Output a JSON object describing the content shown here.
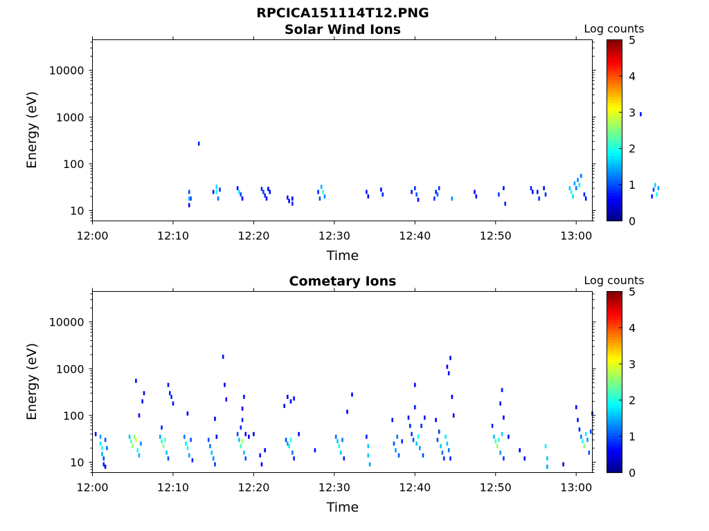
{
  "figure_title": "RPCICA151114T12.PNG",
  "colors": {
    "colormap": "jet",
    "background": "#ffffff"
  },
  "chart_data": [
    {
      "type": "heatmap",
      "title": "Solar Wind Ions",
      "xlabel": "Time",
      "ylabel": "Energy (eV)",
      "yscale": "log",
      "xlim": [
        "12:00",
        "13:02"
      ],
      "ylim": [
        6,
        45000
      ],
      "x_ticks": [
        "12:00",
        "12:10",
        "12:20",
        "12:30",
        "12:40",
        "12:50",
        "13:00"
      ],
      "y_ticks": [
        "10",
        "100",
        "1000",
        "10000"
      ],
      "colorbar": {
        "label": "Log counts",
        "range": [
          0,
          5
        ],
        "ticks": [
          "0",
          "1",
          "2",
          "3",
          "4",
          "5"
        ]
      },
      "cells": [
        {
          "t": 12.0,
          "e": 25,
          "v": 1.0
        },
        {
          "t": 12.0,
          "e": 18,
          "v": 1.6
        },
        {
          "t": 12.0,
          "e": 13,
          "v": 0.6
        },
        {
          "t": 12.2,
          "e": 18,
          "v": 1.0
        },
        {
          "t": 13.2,
          "e": 270,
          "v": 0.8
        },
        {
          "t": 15.0,
          "e": 25,
          "v": 0.7
        },
        {
          "t": 15.4,
          "e": 32,
          "v": 1.7
        },
        {
          "t": 15.4,
          "e": 25,
          "v": 1.9
        },
        {
          "t": 15.6,
          "e": 18,
          "v": 1.2
        },
        {
          "t": 15.8,
          "e": 28,
          "v": 0.9
        },
        {
          "t": 18.0,
          "e": 30,
          "v": 0.7
        },
        {
          "t": 18.2,
          "e": 25,
          "v": 1.8
        },
        {
          "t": 18.4,
          "e": 22,
          "v": 1.0
        },
        {
          "t": 18.6,
          "e": 18,
          "v": 0.6
        },
        {
          "t": 21.0,
          "e": 29,
          "v": 0.8
        },
        {
          "t": 21.2,
          "e": 25,
          "v": 0.9
        },
        {
          "t": 21.4,
          "e": 21,
          "v": 0.8
        },
        {
          "t": 21.6,
          "e": 18,
          "v": 0.7
        },
        {
          "t": 21.8,
          "e": 29,
          "v": 0.6
        },
        {
          "t": 22.0,
          "e": 25,
          "v": 0.7
        },
        {
          "t": 24.2,
          "e": 19,
          "v": 0.7
        },
        {
          "t": 24.4,
          "e": 16,
          "v": 0.6
        },
        {
          "t": 24.8,
          "e": 18,
          "v": 0.6
        },
        {
          "t": 24.8,
          "e": 14,
          "v": 0.8
        },
        {
          "t": 28.0,
          "e": 25,
          "v": 0.8
        },
        {
          "t": 28.2,
          "e": 18,
          "v": 1.0
        },
        {
          "t": 28.4,
          "e": 32,
          "v": 1.5
        },
        {
          "t": 28.6,
          "e": 25,
          "v": 2.0
        },
        {
          "t": 28.8,
          "e": 20,
          "v": 1.3
        },
        {
          "t": 34.0,
          "e": 25,
          "v": 0.7
        },
        {
          "t": 34.2,
          "e": 20,
          "v": 0.6
        },
        {
          "t": 35.8,
          "e": 28,
          "v": 0.6
        },
        {
          "t": 36.0,
          "e": 22,
          "v": 0.8
        },
        {
          "t": 39.6,
          "e": 25,
          "v": 0.7
        },
        {
          "t": 40.0,
          "e": 30,
          "v": 0.9
        },
        {
          "t": 40.2,
          "e": 22,
          "v": 1.0
        },
        {
          "t": 40.4,
          "e": 17,
          "v": 0.7
        },
        {
          "t": 42.4,
          "e": 18,
          "v": 0.9
        },
        {
          "t": 42.6,
          "e": 25,
          "v": 0.8
        },
        {
          "t": 42.8,
          "e": 22,
          "v": 1.1
        },
        {
          "t": 43.0,
          "e": 30,
          "v": 0.9
        },
        {
          "t": 44.6,
          "e": 18,
          "v": 1.3
        },
        {
          "t": 47.4,
          "e": 25,
          "v": 0.6
        },
        {
          "t": 47.6,
          "e": 20,
          "v": 0.7
        },
        {
          "t": 50.4,
          "e": 22,
          "v": 0.9
        },
        {
          "t": 51.0,
          "e": 30,
          "v": 0.7
        },
        {
          "t": 51.2,
          "e": 14,
          "v": 0.8
        },
        {
          "t": 54.4,
          "e": 30,
          "v": 0.7
        },
        {
          "t": 54.6,
          "e": 25,
          "v": 0.6
        },
        {
          "t": 55.2,
          "e": 25,
          "v": 0.7
        },
        {
          "t": 55.4,
          "e": 18,
          "v": 0.8
        },
        {
          "t": 56.0,
          "e": 30,
          "v": 0.6
        },
        {
          "t": 56.2,
          "e": 22,
          "v": 0.8
        },
        {
          "t": 59.2,
          "e": 30,
          "v": 1.6
        },
        {
          "t": 59.4,
          "e": 25,
          "v": 2.0
        },
        {
          "t": 59.6,
          "e": 20,
          "v": 1.7
        },
        {
          "t": 59.8,
          "e": 38,
          "v": 1.4
        },
        {
          "t": 60.0,
          "e": 30,
          "v": 1.2
        },
        {
          "t": 60.2,
          "e": 45,
          "v": 1.3
        },
        {
          "t": 60.4,
          "e": 35,
          "v": 1.8
        },
        {
          "t": 60.6,
          "e": 55,
          "v": 1.2
        },
        {
          "t": 61.0,
          "e": 22,
          "v": 0.8
        },
        {
          "t": 61.2,
          "e": 18,
          "v": 0.7
        },
        {
          "t": 64.2,
          "e": 380,
          "v": 0.7
        },
        {
          "t": 68.0,
          "e": 1150,
          "v": 0.7
        },
        {
          "t": 69.4,
          "e": 20,
          "v": 0.8
        },
        {
          "t": 69.6,
          "e": 28,
          "v": 1.0
        },
        {
          "t": 69.8,
          "e": 35,
          "v": 1.7
        },
        {
          "t": 70.0,
          "e": 22,
          "v": 1.9
        },
        {
          "t": 70.2,
          "e": 30,
          "v": 1.4
        }
      ]
    },
    {
      "type": "heatmap",
      "title": "Cometary Ions",
      "xlabel": "Time",
      "ylabel": "Energy (eV)",
      "yscale": "log",
      "xlim": [
        "12:00",
        "13:02"
      ],
      "ylim": [
        6,
        45000
      ],
      "x_ticks": [
        "12:00",
        "12:10",
        "12:20",
        "12:30",
        "12:40",
        "12:50",
        "13:00"
      ],
      "y_ticks": [
        "10",
        "100",
        "1000",
        "10000"
      ],
      "colorbar": {
        "label": "Log counts",
        "range": [
          0,
          5
        ],
        "ticks": [
          "0",
          "1",
          "2",
          "3",
          "4",
          "5"
        ]
      },
      "cells": [
        {
          "t": 0.4,
          "e": 40,
          "v": 0.6
        },
        {
          "t": 1.0,
          "e": 35,
          "v": 1.4
        },
        {
          "t": 1.0,
          "e": 25,
          "v": 1.8
        },
        {
          "t": 1.2,
          "e": 20,
          "v": 2.0
        },
        {
          "t": 1.2,
          "e": 15,
          "v": 1.5
        },
        {
          "t": 1.4,
          "e": 12,
          "v": 1.0
        },
        {
          "t": 1.4,
          "e": 9,
          "v": 0.8
        },
        {
          "t": 1.6,
          "e": 30,
          "v": 1.0
        },
        {
          "t": 1.6,
          "e": 8,
          "v": 0.6
        },
        {
          "t": 1.8,
          "e": 20,
          "v": 1.2
        },
        {
          "t": 4.6,
          "e": 35,
          "v": 1.6
        },
        {
          "t": 4.8,
          "e": 28,
          "v": 2.2
        },
        {
          "t": 5.0,
          "e": 22,
          "v": 2.5
        },
        {
          "t": 5.2,
          "e": 35,
          "v": 2.6
        },
        {
          "t": 5.4,
          "e": 30,
          "v": 2.9
        },
        {
          "t": 5.6,
          "e": 18,
          "v": 2.0
        },
        {
          "t": 5.8,
          "e": 14,
          "v": 1.5
        },
        {
          "t": 6.0,
          "e": 25,
          "v": 1.3
        },
        {
          "t": 5.4,
          "e": 550,
          "v": 0.7
        },
        {
          "t": 5.8,
          "e": 100,
          "v": 0.7
        },
        {
          "t": 6.2,
          "e": 200,
          "v": 0.6
        },
        {
          "t": 6.4,
          "e": 300,
          "v": 0.6
        },
        {
          "t": 8.4,
          "e": 35,
          "v": 1.4
        },
        {
          "t": 8.6,
          "e": 28,
          "v": 2.1
        },
        {
          "t": 8.8,
          "e": 22,
          "v": 2.6
        },
        {
          "t": 9.0,
          "e": 30,
          "v": 2.3
        },
        {
          "t": 9.2,
          "e": 16,
          "v": 1.6
        },
        {
          "t": 9.4,
          "e": 12,
          "v": 1.0
        },
        {
          "t": 8.6,
          "e": 55,
          "v": 0.8
        },
        {
          "t": 9.4,
          "e": 450,
          "v": 0.7
        },
        {
          "t": 9.6,
          "e": 300,
          "v": 0.8
        },
        {
          "t": 9.8,
          "e": 250,
          "v": 0.8
        },
        {
          "t": 10.0,
          "e": 180,
          "v": 0.7
        },
        {
          "t": 11.4,
          "e": 35,
          "v": 1.2
        },
        {
          "t": 11.6,
          "e": 25,
          "v": 1.8
        },
        {
          "t": 11.8,
          "e": 20,
          "v": 2.0
        },
        {
          "t": 12.0,
          "e": 14,
          "v": 1.4
        },
        {
          "t": 12.2,
          "e": 30,
          "v": 1.0
        },
        {
          "t": 12.4,
          "e": 11,
          "v": 0.8
        },
        {
          "t": 11.8,
          "e": 110,
          "v": 0.6
        },
        {
          "t": 14.4,
          "e": 30,
          "v": 1.0
        },
        {
          "t": 14.6,
          "e": 22,
          "v": 1.2
        },
        {
          "t": 14.8,
          "e": 16,
          "v": 1.6
        },
        {
          "t": 15.0,
          "e": 12,
          "v": 1.3
        },
        {
          "t": 15.2,
          "e": 9,
          "v": 0.9
        },
        {
          "t": 15.4,
          "e": 35,
          "v": 0.6
        },
        {
          "t": 15.2,
          "e": 85,
          "v": 0.6
        },
        {
          "t": 16.2,
          "e": 1800,
          "v": 0.7
        },
        {
          "t": 16.4,
          "e": 450,
          "v": 0.6
        },
        {
          "t": 16.6,
          "e": 220,
          "v": 0.6
        },
        {
          "t": 18.0,
          "e": 40,
          "v": 1.0
        },
        {
          "t": 18.2,
          "e": 30,
          "v": 1.6
        },
        {
          "t": 18.4,
          "e": 22,
          "v": 2.2
        },
        {
          "t": 18.6,
          "e": 28,
          "v": 2.7
        },
        {
          "t": 18.8,
          "e": 16,
          "v": 1.6
        },
        {
          "t": 19.0,
          "e": 12,
          "v": 1.0
        },
        {
          "t": 18.4,
          "e": 55,
          "v": 0.8
        },
        {
          "t": 18.6,
          "e": 80,
          "v": 0.8
        },
        {
          "t": 18.6,
          "e": 140,
          "v": 0.6
        },
        {
          "t": 18.8,
          "e": 250,
          "v": 0.7
        },
        {
          "t": 19.0,
          "e": 40,
          "v": 0.6
        },
        {
          "t": 19.4,
          "e": 35,
          "v": 0.6
        },
        {
          "t": 20.0,
          "e": 40,
          "v": 0.6
        },
        {
          "t": 20.8,
          "e": 14,
          "v": 0.7
        },
        {
          "t": 21.0,
          "e": 9,
          "v": 0.6
        },
        {
          "t": 21.4,
          "e": 18,
          "v": 0.6
        },
        {
          "t": 24.0,
          "e": 30,
          "v": 1.0
        },
        {
          "t": 24.2,
          "e": 25,
          "v": 1.4
        },
        {
          "t": 24.4,
          "e": 22,
          "v": 1.8
        },
        {
          "t": 24.6,
          "e": 30,
          "v": 2.0
        },
        {
          "t": 24.8,
          "e": 16,
          "v": 1.2
        },
        {
          "t": 25.0,
          "e": 12,
          "v": 0.8
        },
        {
          "t": 23.8,
          "e": 160,
          "v": 0.6
        },
        {
          "t": 24.2,
          "e": 250,
          "v": 0.6
        },
        {
          "t": 24.6,
          "e": 200,
          "v": 0.6
        },
        {
          "t": 25.0,
          "e": 230,
          "v": 0.6
        },
        {
          "t": 25.6,
          "e": 40,
          "v": 0.6
        },
        {
          "t": 27.6,
          "e": 18,
          "v": 0.7
        },
        {
          "t": 30.2,
          "e": 35,
          "v": 1.2
        },
        {
          "t": 30.4,
          "e": 28,
          "v": 1.6
        },
        {
          "t": 30.6,
          "e": 22,
          "v": 2.0
        },
        {
          "t": 30.8,
          "e": 16,
          "v": 1.6
        },
        {
          "t": 31.0,
          "e": 30,
          "v": 1.2
        },
        {
          "t": 31.2,
          "e": 12,
          "v": 0.8
        },
        {
          "t": 31.6,
          "e": 120,
          "v": 0.6
        },
        {
          "t": 32.2,
          "e": 280,
          "v": 0.6
        },
        {
          "t": 34.0,
          "e": 35,
          "v": 0.8
        },
        {
          "t": 34.2,
          "e": 22,
          "v": 1.6
        },
        {
          "t": 34.2,
          "e": 14,
          "v": 1.6
        },
        {
          "t": 34.4,
          "e": 9,
          "v": 1.4
        },
        {
          "t": 37.2,
          "e": 80,
          "v": 0.6
        },
        {
          "t": 37.4,
          "e": 25,
          "v": 1.0
        },
        {
          "t": 37.6,
          "e": 18,
          "v": 1.4
        },
        {
          "t": 37.8,
          "e": 35,
          "v": 1.2
        },
        {
          "t": 38.0,
          "e": 14,
          "v": 1.0
        },
        {
          "t": 38.4,
          "e": 28,
          "v": 0.8
        },
        {
          "t": 39.2,
          "e": 90,
          "v": 0.7
        },
        {
          "t": 39.4,
          "e": 60,
          "v": 0.8
        },
        {
          "t": 39.6,
          "e": 40,
          "v": 0.9
        },
        {
          "t": 39.8,
          "e": 30,
          "v": 1.0
        },
        {
          "t": 40.0,
          "e": 150,
          "v": 0.7
        },
        {
          "t": 40.0,
          "e": 450,
          "v": 0.6
        },
        {
          "t": 40.2,
          "e": 25,
          "v": 1.6
        },
        {
          "t": 40.4,
          "e": 35,
          "v": 1.9
        },
        {
          "t": 40.6,
          "e": 20,
          "v": 1.4
        },
        {
          "t": 40.8,
          "e": 60,
          "v": 0.8
        },
        {
          "t": 41.0,
          "e": 14,
          "v": 1.0
        },
        {
          "t": 41.2,
          "e": 90,
          "v": 0.6
        },
        {
          "t": 42.6,
          "e": 80,
          "v": 0.6
        },
        {
          "t": 42.8,
          "e": 30,
          "v": 1.0
        },
        {
          "t": 43.0,
          "e": 45,
          "v": 0.9
        },
        {
          "t": 43.2,
          "e": 22,
          "v": 1.6
        },
        {
          "t": 43.4,
          "e": 16,
          "v": 1.2
        },
        {
          "t": 43.6,
          "e": 12,
          "v": 0.9
        },
        {
          "t": 43.8,
          "e": 35,
          "v": 1.8
        },
        {
          "t": 44.0,
          "e": 25,
          "v": 1.6
        },
        {
          "t": 44.2,
          "e": 18,
          "v": 1.2
        },
        {
          "t": 44.4,
          "e": 12,
          "v": 0.8
        },
        {
          "t": 44.0,
          "e": 1100,
          "v": 0.6
        },
        {
          "t": 44.2,
          "e": 800,
          "v": 0.7
        },
        {
          "t": 44.4,
          "e": 1700,
          "v": 0.6
        },
        {
          "t": 44.6,
          "e": 250,
          "v": 0.6
        },
        {
          "t": 44.8,
          "e": 100,
          "v": 0.6
        },
        {
          "t": 49.6,
          "e": 60,
          "v": 0.8
        },
        {
          "t": 49.8,
          "e": 35,
          "v": 1.6
        },
        {
          "t": 50.0,
          "e": 28,
          "v": 2.3
        },
        {
          "t": 50.2,
          "e": 22,
          "v": 2.6
        },
        {
          "t": 50.4,
          "e": 30,
          "v": 2.1
        },
        {
          "t": 50.6,
          "e": 16,
          "v": 1.4
        },
        {
          "t": 50.8,
          "e": 40,
          "v": 1.7
        },
        {
          "t": 51.0,
          "e": 12,
          "v": 0.9
        },
        {
          "t": 50.6,
          "e": 180,
          "v": 0.7
        },
        {
          "t": 50.8,
          "e": 350,
          "v": 0.7
        },
        {
          "t": 51.0,
          "e": 90,
          "v": 0.6
        },
        {
          "t": 51.6,
          "e": 35,
          "v": 0.6
        },
        {
          "t": 53.0,
          "e": 18,
          "v": 0.6
        },
        {
          "t": 53.6,
          "e": 12,
          "v": 0.6
        },
        {
          "t": 56.2,
          "e": 22,
          "v": 1.8
        },
        {
          "t": 56.4,
          "e": 12,
          "v": 1.6
        },
        {
          "t": 56.4,
          "e": 8,
          "v": 1.4
        },
        {
          "t": 58.4,
          "e": 9,
          "v": 0.6
        },
        {
          "t": 60.0,
          "e": 150,
          "v": 0.6
        },
        {
          "t": 60.2,
          "e": 80,
          "v": 0.7
        },
        {
          "t": 60.4,
          "e": 50,
          "v": 0.8
        },
        {
          "t": 60.6,
          "e": 35,
          "v": 1.2
        },
        {
          "t": 60.8,
          "e": 28,
          "v": 2.0
        },
        {
          "t": 61.0,
          "e": 22,
          "v": 2.6
        },
        {
          "t": 61.2,
          "e": 40,
          "v": 1.8
        },
        {
          "t": 61.4,
          "e": 30,
          "v": 1.4
        },
        {
          "t": 61.6,
          "e": 16,
          "v": 1.0
        },
        {
          "t": 61.8,
          "e": 45,
          "v": 1.0
        },
        {
          "t": 62.0,
          "e": 110,
          "v": 0.6
        }
      ]
    }
  ]
}
